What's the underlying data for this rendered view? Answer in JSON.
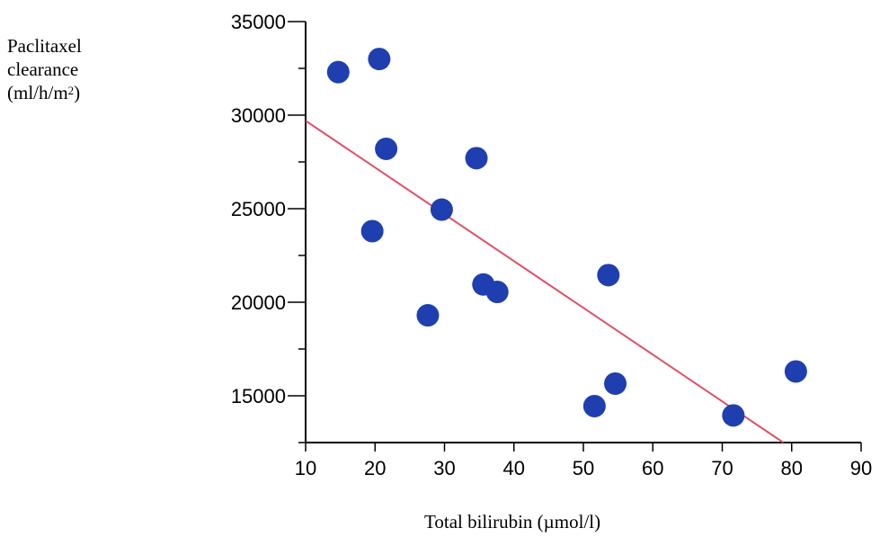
{
  "chart_data": {
    "type": "scatter",
    "title": "",
    "ylabel_lines": [
      "Paclitaxel",
      "clearance"
    ],
    "ylabel_unit": {
      "open": "(ml/h/m",
      "sup": "2",
      "close": ")"
    },
    "xlabel": "Total bilirubin (µmol/l)",
    "xlim": [
      10,
      90
    ],
    "ylim": [
      12500,
      35000
    ],
    "xticks": [
      10,
      20,
      30,
      40,
      50,
      60,
      70,
      80,
      90
    ],
    "yticks": [
      15000,
      20000,
      25000,
      30000,
      35000
    ],
    "grid": false,
    "points": [
      {
        "x": 14.7,
        "y": 32300
      },
      {
        "x": 20.6,
        "y": 33000
      },
      {
        "x": 21.6,
        "y": 28200
      },
      {
        "x": 19.6,
        "y": 23800
      },
      {
        "x": 29.6,
        "y": 24950
      },
      {
        "x": 27.6,
        "y": 19300
      },
      {
        "x": 34.6,
        "y": 27700
      },
      {
        "x": 35.6,
        "y": 20950
      },
      {
        "x": 37.6,
        "y": 20550
      },
      {
        "x": 51.6,
        "y": 14450
      },
      {
        "x": 53.6,
        "y": 21450
      },
      {
        "x": 54.6,
        "y": 15650
      },
      {
        "x": 71.6,
        "y": 13950
      },
      {
        "x": 80.6,
        "y": 16300
      }
    ],
    "regression_line": {
      "x": [
        10,
        78.8
      ],
      "y": [
        29700,
        12500
      ]
    },
    "colors": {
      "points": "#1f3fb0",
      "line": "#e0506a",
      "axis": "#000000"
    }
  }
}
